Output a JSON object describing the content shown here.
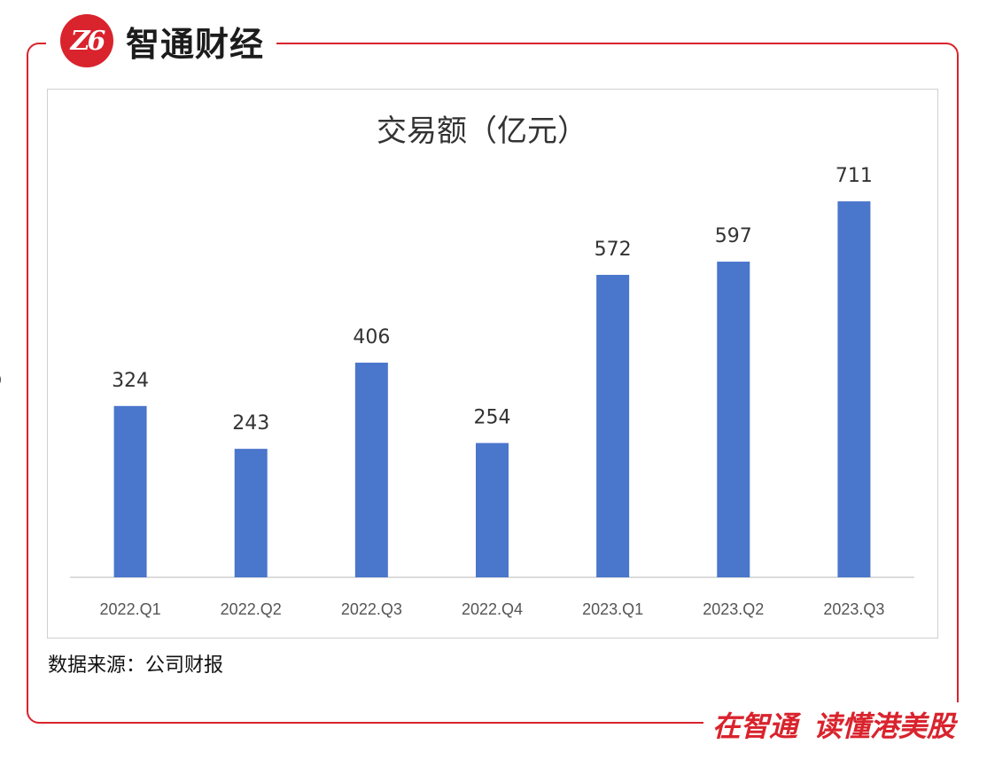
{
  "brand": {
    "logo_text": "Z6",
    "name": "智通财经"
  },
  "slogan": {
    "part1": "在智通",
    "part2": "读懂港美股"
  },
  "source_note": "数据来源：公司财报",
  "edge_mark": ")",
  "colors": {
    "bar": "#4a76cc",
    "frame": "#d9232d",
    "axis": "#d0d0d0"
  },
  "chart_data": {
    "type": "bar",
    "title": "交易额（亿元）",
    "categories": [
      "2022.Q1",
      "2022.Q2",
      "2022.Q3",
      "2022.Q4",
      "2023.Q1",
      "2023.Q2",
      "2023.Q3"
    ],
    "values": [
      324,
      243,
      406,
      254,
      572,
      597,
      711
    ],
    "xlabel": "",
    "ylabel": "",
    "ylim": [
      0,
      800
    ],
    "grid": false,
    "legend": "none",
    "data_labels": true
  }
}
